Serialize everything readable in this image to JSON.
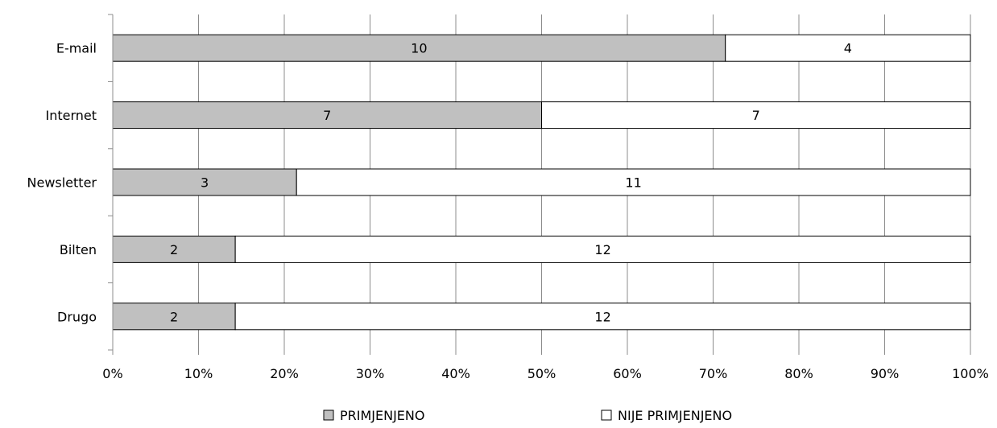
{
  "chart_data": {
    "type": "bar",
    "orientation": "horizontal",
    "stacked": "percent",
    "categories": [
      "E-mail",
      "Internet",
      "Newsletter",
      "Bilten",
      "Drugo"
    ],
    "series": [
      {
        "name": "PRIMJENJENO",
        "values": [
          10,
          7,
          3,
          2,
          2
        ],
        "color": "#c0c0c0"
      },
      {
        "name": "NIJE PRIMJENJENO",
        "values": [
          4,
          7,
          11,
          12,
          12
        ],
        "color": "#ffffff"
      }
    ],
    "x_ticks": [
      "0%",
      "10%",
      "20%",
      "30%",
      "40%",
      "50%",
      "60%",
      "70%",
      "80%",
      "90%",
      "100%"
    ],
    "xlim": [
      0,
      100
    ],
    "grid": "vertical",
    "legend": "bottom",
    "title": "",
    "xlabel": "",
    "ylabel": ""
  }
}
